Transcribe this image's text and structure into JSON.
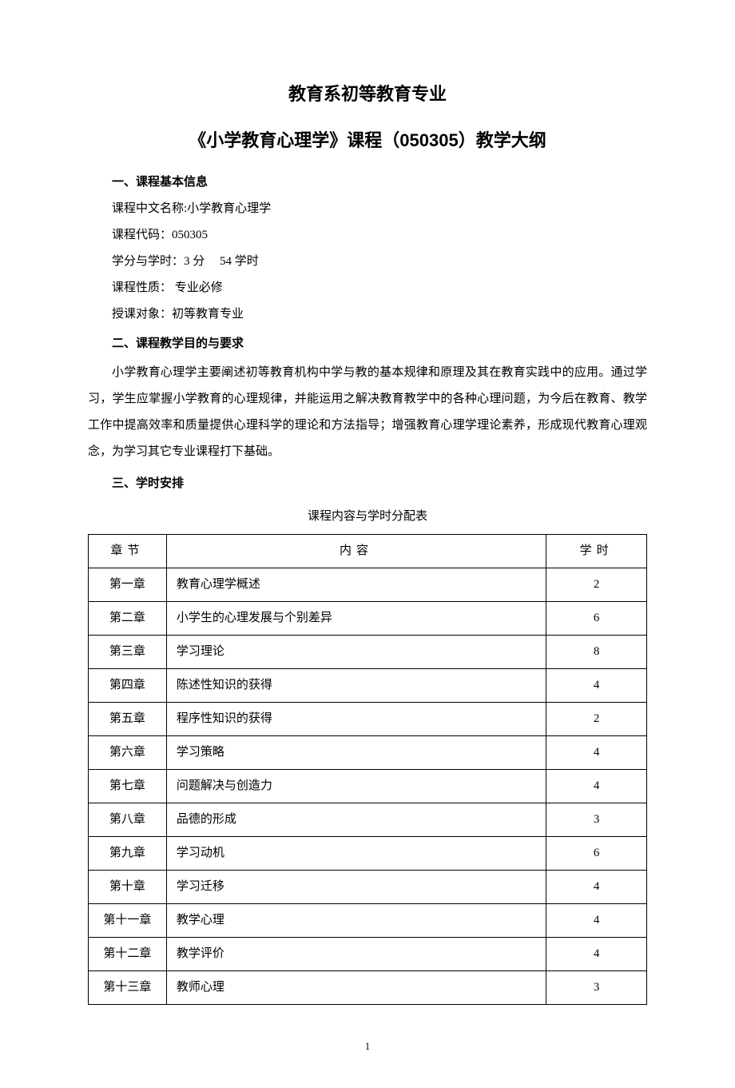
{
  "header": {
    "title_main": "教育系初等教育专业",
    "title_sub": "《小学教育心理学》课程（050305）教学大纲"
  },
  "section1": {
    "heading": "一、课程基本信息",
    "name_label": "课程中文名称:",
    "name_value": "小学教育心理学",
    "code_label": "课程代码：",
    "code_value": "050305",
    "credits_label": "学分与学时：",
    "credits_value": "3 分",
    "hours_value": "54 学时",
    "nature_label": "课程性质：",
    "nature_value": " 专业必修",
    "audience_label": "授课对象：",
    "audience_value": "初等教育专业"
  },
  "section2": {
    "heading": "二、课程教学目的与要求",
    "paragraph": "小学教育心理学主要阐述初等教育机构中学与教的基本规律和原理及其在教育实践中的应用。通过学习，学生应掌握小学教育的心理规律，并能运用之解决教育教学中的各种心理问题，为今后在教育、教学工作中提高效率和质量提供心理科学的理论和方法指导；增强教育心理学理论素养，形成现代教育心理观念，为学习其它专业课程打下基础。"
  },
  "section3": {
    "heading": "三、学时安排",
    "table_caption": "课程内容与学时分配表",
    "columns": {
      "chapter": "章节",
      "content": "内容",
      "hours": "学时"
    },
    "rows": [
      {
        "chapter": "第一章",
        "content": "教育心理学概述",
        "hours": "2"
      },
      {
        "chapter": "第二章",
        "content": "小学生的心理发展与个别差异",
        "hours": "6"
      },
      {
        "chapter": "第三章",
        "content": "学习理论",
        "hours": "8"
      },
      {
        "chapter": "第四章",
        "content": "陈述性知识的获得",
        "hours": "4"
      },
      {
        "chapter": "第五章",
        "content": "程序性知识的获得",
        "hours": "2"
      },
      {
        "chapter": "第六章",
        "content": "学习策略",
        "hours": "4"
      },
      {
        "chapter": "第七章",
        "content": "问题解决与创造力",
        "hours": "4"
      },
      {
        "chapter": "第八章",
        "content": "品德的形成",
        "hours": "3"
      },
      {
        "chapter": "第九章",
        "content": "学习动机",
        "hours": "6"
      },
      {
        "chapter": "第十章",
        "content": "学习迁移",
        "hours": "4"
      },
      {
        "chapter": "第十一章",
        "content": "教学心理",
        "hours": "4"
      },
      {
        "chapter": "第十二章",
        "content": "教学评价",
        "hours": "4"
      },
      {
        "chapter": "第十三章",
        "content": "教师心理",
        "hours": "3"
      }
    ]
  },
  "page_number": "1",
  "style": {
    "background_color": "#ffffff",
    "text_color": "#000000",
    "border_color": "#000000",
    "title_fontsize": 22,
    "body_fontsize": 15,
    "pagenum_fontsize": 13
  }
}
